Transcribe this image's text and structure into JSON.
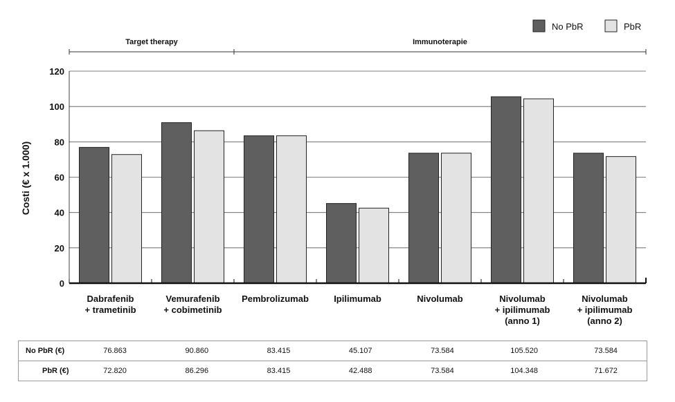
{
  "chart_data": {
    "type": "bar",
    "ylabel": "Costi (€ x 1.000)",
    "xlabel": "",
    "ylim": [
      0,
      120
    ],
    "yticks": [
      0,
      20,
      40,
      60,
      80,
      100,
      120
    ],
    "grid": true,
    "legend_position": "top-right",
    "categories": [
      [
        "Dabrafenib",
        "+ trametinib"
      ],
      [
        "Vemurafenib",
        "+ cobimetinib"
      ],
      [
        "Pembrolizumab"
      ],
      [
        "Ipilimumab"
      ],
      [
        "Nivolumab"
      ],
      [
        "Nivolumab",
        "+ ipilimumab",
        "(anno 1)"
      ],
      [
        "Nivolumab",
        "+ ipilimumab",
        "(anno 2)"
      ]
    ],
    "series": [
      {
        "name": "No PbR",
        "color": "#5f5f5f",
        "values": [
          76.863,
          90.86,
          83.415,
          45.107,
          73.584,
          105.52,
          73.584
        ]
      },
      {
        "name": "PbR",
        "color": "#e3e3e3",
        "values": [
          72.82,
          86.296,
          83.415,
          42.488,
          73.584,
          104.348,
          71.672
        ]
      }
    ],
    "groups": [
      {
        "label": "Target therapy",
        "from": 0,
        "to": 1
      },
      {
        "label": "Immunoterapie",
        "from": 2,
        "to": 6
      }
    ]
  },
  "table": {
    "rows": [
      {
        "label": "No PbR (€)",
        "values": [
          "76.863",
          "90.860",
          "83.415",
          "45.107",
          "73.584",
          "105.520",
          "73.584"
        ]
      },
      {
        "label": "PbR (€)",
        "values": [
          "72.820",
          "86.296",
          "83.415",
          "42.488",
          "73.584",
          "104.348",
          "71.672"
        ]
      }
    ]
  }
}
